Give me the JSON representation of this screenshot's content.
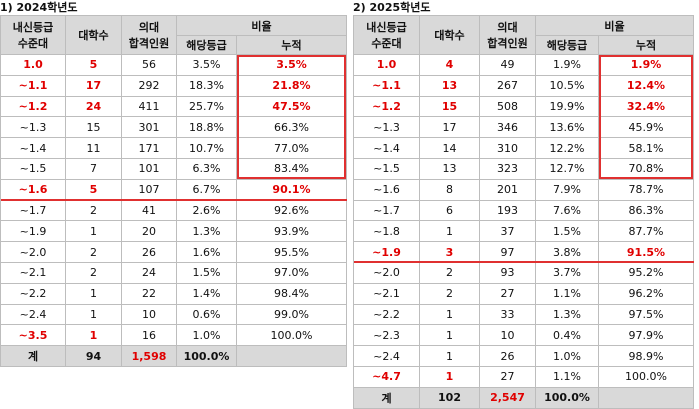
{
  "tables": [
    {
      "title": "1)  2024학년도",
      "headers": {
        "grade_l1": "내신등급",
        "grade_l2": "수준대",
        "univ": "대학수",
        "med_l1": "의대",
        "med_l2": "합격인원",
        "ratio": "비율",
        "ratio_grade": "해당등급",
        "ratio_cum": "누적"
      },
      "rows": [
        {
          "grade": "1.0",
          "univ": "5",
          "admits": "56",
          "pct": "3.5%",
          "cum": "3.5%",
          "red_grade": true,
          "red_univ": true,
          "red_cum": true
        },
        {
          "grade": "~1.1",
          "univ": "17",
          "admits": "292",
          "pct": "18.3%",
          "cum": "21.8%",
          "red_grade": true,
          "red_univ": true,
          "red_cum": true
        },
        {
          "grade": "~1.2",
          "univ": "24",
          "admits": "411",
          "pct": "25.7%",
          "cum": "47.5%",
          "red_grade": true,
          "red_univ": true,
          "red_cum": true
        },
        {
          "grade": "~1.3",
          "univ": "15",
          "admits": "301",
          "pct": "18.8%",
          "cum": "66.3%"
        },
        {
          "grade": "~1.4",
          "univ": "11",
          "admits": "171",
          "pct": "10.7%",
          "cum": "77.0%"
        },
        {
          "grade": "~1.5",
          "univ": "7",
          "admits": "101",
          "pct": "6.3%",
          "cum": "83.4%"
        },
        {
          "grade": "~1.6",
          "univ": "5",
          "admits": "107",
          "pct": "6.7%",
          "cum": "90.1%",
          "red_grade": true,
          "red_univ": true,
          "red_cum": true
        },
        {
          "grade": "~1.7",
          "univ": "2",
          "admits": "41",
          "pct": "2.6%",
          "cum": "92.6%"
        },
        {
          "grade": "~1.9",
          "univ": "1",
          "admits": "20",
          "pct": "1.3%",
          "cum": "93.9%"
        },
        {
          "grade": "~2.0",
          "univ": "2",
          "admits": "26",
          "pct": "1.6%",
          "cum": "95.5%"
        },
        {
          "grade": "~2.1",
          "univ": "2",
          "admits": "24",
          "pct": "1.5%",
          "cum": "97.0%"
        },
        {
          "grade": "~2.2",
          "univ": "1",
          "admits": "22",
          "pct": "1.4%",
          "cum": "98.4%"
        },
        {
          "grade": "~2.4",
          "univ": "1",
          "admits": "10",
          "pct": "0.6%",
          "cum": "99.0%"
        },
        {
          "grade": "~3.5",
          "univ": "1",
          "admits": "16",
          "pct": "1.0%",
          "cum": "100.0%",
          "red_grade": true,
          "red_univ": true
        }
      ],
      "total": {
        "label": "계",
        "univ": "94",
        "admits": "1,598",
        "pct": "100.0%"
      }
    },
    {
      "title": "2)  2025학년도",
      "headers": {
        "grade_l1": "내신등급",
        "grade_l2": "수준대",
        "univ": "대학수",
        "med_l1": "의대",
        "med_l2": "합격인원",
        "ratio": "비율",
        "ratio_grade": "해당등급",
        "ratio_cum": "누적"
      },
      "rows": [
        {
          "grade": "1.0",
          "univ": "4",
          "admits": "49",
          "pct": "1.9%",
          "cum": "1.9%",
          "red_grade": true,
          "red_univ": true,
          "red_cum": true
        },
        {
          "grade": "~1.1",
          "univ": "13",
          "admits": "267",
          "pct": "10.5%",
          "cum": "12.4%",
          "red_grade": true,
          "red_univ": true,
          "red_cum": true
        },
        {
          "grade": "~1.2",
          "univ": "15",
          "admits": "508",
          "pct": "19.9%",
          "cum": "32.4%",
          "red_grade": true,
          "red_univ": true,
          "red_cum": true
        },
        {
          "grade": "~1.3",
          "univ": "17",
          "admits": "346",
          "pct": "13.6%",
          "cum": "45.9%"
        },
        {
          "grade": "~1.4",
          "univ": "14",
          "admits": "310",
          "pct": "12.2%",
          "cum": "58.1%"
        },
        {
          "grade": "~1.5",
          "univ": "13",
          "admits": "323",
          "pct": "12.7%",
          "cum": "70.8%"
        },
        {
          "grade": "~1.6",
          "univ": "8",
          "admits": "201",
          "pct": "7.9%",
          "cum": "78.7%"
        },
        {
          "grade": "~1.7",
          "univ": "6",
          "admits": "193",
          "pct": "7.6%",
          "cum": "86.3%"
        },
        {
          "grade": "~1.8",
          "univ": "1",
          "admits": "37",
          "pct": "1.5%",
          "cum": "87.7%"
        },
        {
          "grade": "~1.9",
          "univ": "3",
          "admits": "97",
          "pct": "3.8%",
          "cum": "91.5%",
          "red_grade": true,
          "red_univ": true,
          "red_cum": true
        },
        {
          "grade": "~2.0",
          "univ": "2",
          "admits": "93",
          "pct": "3.7%",
          "cum": "95.2%"
        },
        {
          "grade": "~2.1",
          "univ": "2",
          "admits": "27",
          "pct": "1.1%",
          "cum": "96.2%"
        },
        {
          "grade": "~2.2",
          "univ": "1",
          "admits": "33",
          "pct": "1.3%",
          "cum": "97.5%"
        },
        {
          "grade": "~2.3",
          "univ": "1",
          "admits": "10",
          "pct": "0.4%",
          "cum": "97.9%"
        },
        {
          "grade": "~2.4",
          "univ": "1",
          "admits": "26",
          "pct": "1.0%",
          "cum": "98.9%"
        },
        {
          "grade": "~4.7",
          "univ": "1",
          "admits": "27",
          "pct": "1.1%",
          "cum": "100.0%",
          "red_grade": true,
          "red_univ": true
        }
      ],
      "total": {
        "label": "계",
        "univ": "102",
        "admits": "2,547",
        "pct": "100.0%"
      }
    }
  ],
  "colors": {
    "highlight": "#e00000",
    "header_bg": "#d9d9d9",
    "box": "#e03030"
  }
}
